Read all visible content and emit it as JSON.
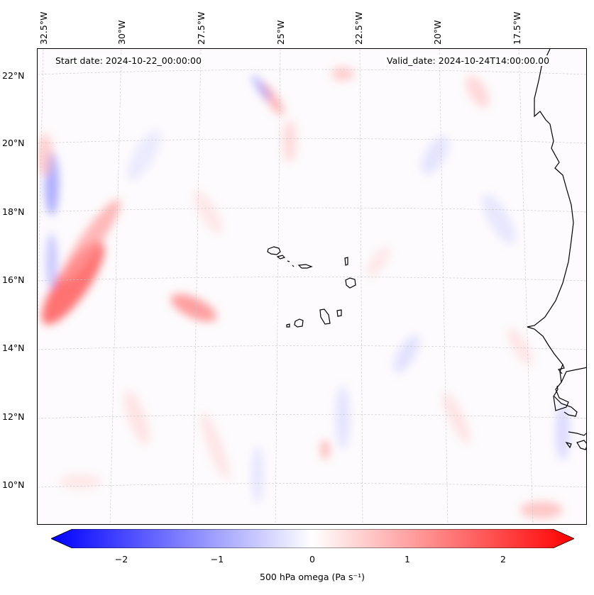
{
  "map": {
    "start_date": "Start date: 2024-10-22_00:00:00",
    "valid_date": "Valid_date: 2024-10-24T14:00:00.00",
    "field": "500 hPa omega",
    "longitude_labels": [
      "32.5°W",
      "30°W",
      "27.5°W",
      "25°W",
      "22.5°W",
      "20°W",
      "17.5°W"
    ],
    "latitude_labels": [
      "22°N",
      "20°N",
      "18°N",
      "16°N",
      "14°N",
      "12°N",
      "10°N"
    ],
    "extent": {
      "lon_min": -33.0,
      "lon_max": -15.3,
      "lat_min": 8.8,
      "lat_max": 22.7
    },
    "features": [
      "Cape Verde islands",
      "West African coastline"
    ]
  },
  "colorbar": {
    "label": "500 hPa omega (Pa s⁻¹)",
    "ticks": [
      "−2",
      "−1",
      "0",
      "1",
      "2"
    ],
    "tick_values": [
      -2,
      -1,
      0,
      1,
      2
    ],
    "range": [
      -2.75,
      2.75
    ],
    "colormap": "bwr",
    "extend": "both",
    "color_min": "#0000ff",
    "color_mid": "#ffffff",
    "color_max": "#ff0000"
  }
}
